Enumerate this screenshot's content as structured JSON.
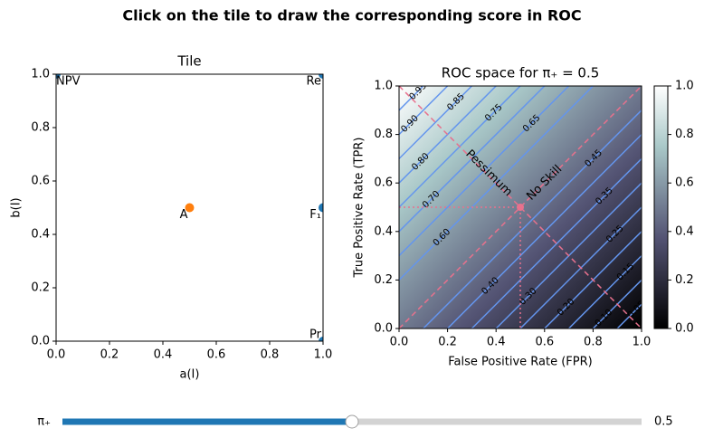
{
  "title": "Click on the tile to draw the corresponding score in ROC",
  "chart_data": [
    {
      "type": "scatter",
      "title": "Tile",
      "x_label": "a(I)",
      "y_label": "b(I)",
      "x": [
        0,
        1,
        0.5,
        1,
        1
      ],
      "y": [
        1,
        1,
        0.5,
        0.5,
        0
      ],
      "point_labels": [
        "NPV",
        "Re",
        "A",
        "F₁",
        "Pr"
      ],
      "colors": [
        "#1f77b4",
        "#1f77b4",
        "#ff7f0e",
        "#1f77b4",
        "#1f77b4"
      ],
      "xlim": [
        0,
        1
      ],
      "ylim": [
        0,
        1
      ],
      "xticks": [
        {
          "value": 0,
          "label": "0.0"
        },
        0.2,
        0.4,
        0.6,
        0.8,
        {
          "value": 1,
          "label": "1.0"
        }
      ],
      "yticks": [
        {
          "value": 0,
          "label": "0.0"
        },
        0.2,
        0.4,
        0.6,
        0.8,
        {
          "value": 1,
          "label": "1.0"
        }
      ]
    },
    {
      "type": "contour",
      "title": "ROC space for π₊ = 0.5",
      "x_label": "False Positive Rate (FPR)",
      "y_label": "True Positive Rate (TPR)",
      "colormap": "bone",
      "contour_color": "#6495ed",
      "contour_levels": [
        0.05,
        {
          "value": 0.1,
          "label": "0.10"
        },
        0.15,
        {
          "value": 0.2,
          "label": "0.20"
        },
        0.25,
        {
          "value": 0.3,
          "label": "0.30"
        },
        0.35,
        {
          "value": 0.4,
          "label": "0.40"
        },
        0.45,
        {
          "value": 0.6,
          "label": "0.60"
        },
        0.65,
        {
          "value": 0.7,
          "label": "0.70"
        },
        0.75,
        {
          "value": 0.8,
          "label": "0.80"
        },
        0.85,
        {
          "value": 0.9,
          "label": "0.90"
        },
        0.95
      ],
      "reference_lines": [
        {
          "label": "No Skill",
          "x": [
            0,
            1
          ],
          "y": [
            0,
            1
          ],
          "color": "#e8718d",
          "style": "dashed"
        },
        {
          "label": "Pessimum",
          "x": [
            0,
            1
          ],
          "y": [
            1,
            0
          ],
          "color": "#e8718d",
          "style": "dashed"
        },
        {
          "x": [
            0,
            0.5,
            0.5
          ],
          "y": [
            0.5,
            0.5,
            0
          ],
          "color": "#e8718d",
          "style": "dotted"
        }
      ],
      "point": {
        "x": 0.5,
        "y": 0.5,
        "color": "#e8718d"
      },
      "xlim": [
        0,
        1
      ],
      "ylim": [
        0,
        1
      ],
      "xticks": [
        {
          "value": 0,
          "label": "0.0"
        },
        0.2,
        0.4,
        0.6,
        0.8,
        {
          "value": 1,
          "label": "1.0"
        }
      ],
      "yticks": [
        {
          "value": 0,
          "label": "0.0"
        },
        0.2,
        0.4,
        0.6,
        0.8,
        {
          "value": 1,
          "label": "1.0"
        }
      ],
      "colorbar_lim": [
        0,
        1
      ],
      "colorbar_ticks": [
        {
          "value": 0,
          "label": "0.0"
        },
        0.2,
        0.4,
        0.6,
        0.8,
        {
          "value": 1,
          "label": "1.0"
        }
      ]
    }
  ],
  "slider": {
    "label": "π₊",
    "value": 0.5,
    "xlim": [
      0,
      1
    ],
    "color": "#1f77b4"
  }
}
